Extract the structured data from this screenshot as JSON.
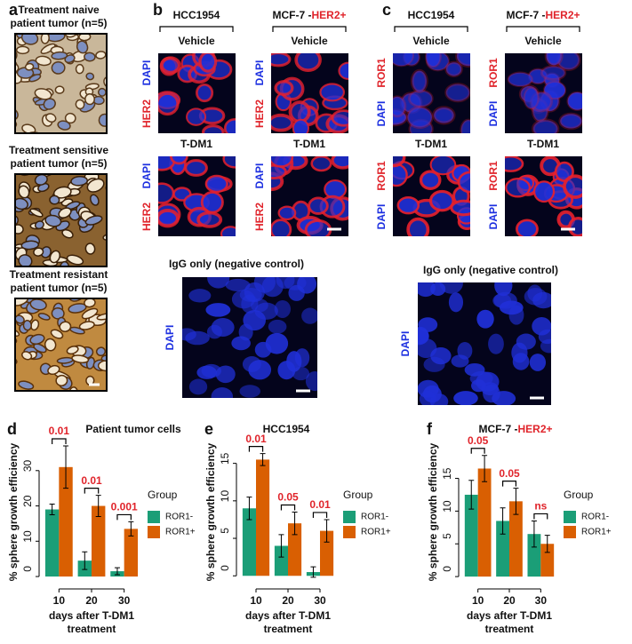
{
  "panels": {
    "a": {
      "letter": "a",
      "images": [
        {
          "caption": [
            "Treatment naive",
            "patient tumor (n=5)"
          ]
        },
        {
          "caption": [
            "Treatment sensitive",
            "patient tumor (n=5)"
          ]
        },
        {
          "caption": [
            "Treatment resistant",
            "patient tumor (n=5)"
          ]
        }
      ]
    },
    "b": {
      "letter": "b",
      "columns": [
        {
          "title": "HCC1954"
        },
        {
          "title": "MCF-7 -",
          "title_highlight": "HER2+"
        }
      ],
      "rows": [
        {
          "condition": "Vehicle"
        },
        {
          "condition": "T-DM1"
        }
      ],
      "stain_top": "DAPI",
      "stain_bottom": "HER2",
      "control": {
        "title": "IgG only (negative control)",
        "stain": "DAPI"
      }
    },
    "c": {
      "letter": "c",
      "columns": [
        {
          "title": "HCC1954"
        },
        {
          "title": "MCF-7 -",
          "title_highlight": "HER2+"
        }
      ],
      "rows": [
        {
          "condition": "Vehicle"
        },
        {
          "condition": "T-DM1"
        }
      ],
      "stain_top": "ROR1",
      "stain_bottom": "DAPI",
      "control": {
        "title": "IgG only (negative control)",
        "stain": "DAPI"
      }
    }
  },
  "chart_data": [
    {
      "type": "bar",
      "letter": "d",
      "title": "Patient tumor cells",
      "ylabel": "% sphere growth efficiency",
      "xlabel": [
        "days after T-DM1",
        "treatment"
      ],
      "categories": [
        "10",
        "20",
        "30"
      ],
      "series": [
        {
          "name": "ROR1-",
          "color": "#1b9e77",
          "values": [
            19,
            4.5,
            1.5
          ],
          "errors": [
            1.5,
            2.5,
            1
          ]
        },
        {
          "name": "ROR1+",
          "color": "#d95f02",
          "values": [
            31,
            20,
            13.5
          ],
          "errors": [
            6,
            3,
            2
          ]
        }
      ],
      "pvalues": [
        "0.01",
        "0.01",
        "0.001"
      ],
      "legend_title": "Group",
      "ylim": [
        -1.5,
        38
      ],
      "yticks": [
        0,
        10,
        20,
        30
      ]
    },
    {
      "type": "bar",
      "letter": "e",
      "title": "HCC1954",
      "ylabel": "% sphere growth efficiency",
      "xlabel": [
        "days after T-DM1",
        "treatment"
      ],
      "categories": [
        "10",
        "20",
        "30"
      ],
      "series": [
        {
          "name": "ROR1-",
          "color": "#1b9e77",
          "values": [
            9,
            4,
            0.5
          ],
          "errors": [
            1.5,
            1.5,
            0.7
          ]
        },
        {
          "name": "ROR1+",
          "color": "#d95f02",
          "values": [
            15.5,
            7,
            6
          ],
          "errors": [
            0.8,
            1.5,
            1.5
          ]
        }
      ],
      "pvalues": [
        "0.01",
        "0.05",
        "0.01"
      ],
      "legend_title": "Group",
      "ylim": [
        -0.8,
        17.8
      ],
      "yticks": [
        0,
        5,
        10,
        15
      ]
    },
    {
      "type": "bar",
      "letter": "f",
      "title": "MCF-7 -",
      "title_highlight": "HER2+",
      "ylabel": "% sphere growth efficiency",
      "xlabel": [
        "days after T-DM1",
        "treatment"
      ],
      "categories": [
        "10",
        "20",
        "30"
      ],
      "series": [
        {
          "name": "ROR1-",
          "color": "#1b9e77",
          "values": [
            12.5,
            8.5,
            6.5
          ],
          "errors": [
            2.2,
            2,
            2
          ]
        },
        {
          "name": "ROR1+",
          "color": "#d95f02",
          "values": [
            16.5,
            11.5,
            5
          ],
          "errors": [
            2,
            2,
            1.3
          ]
        }
      ],
      "pvalues": [
        "0.05",
        "0.05",
        "ns"
      ],
      "legend_title": "Group",
      "ylim": [
        -0.8,
        20.5
      ],
      "yticks": [
        0,
        5,
        10,
        15
      ]
    }
  ]
}
